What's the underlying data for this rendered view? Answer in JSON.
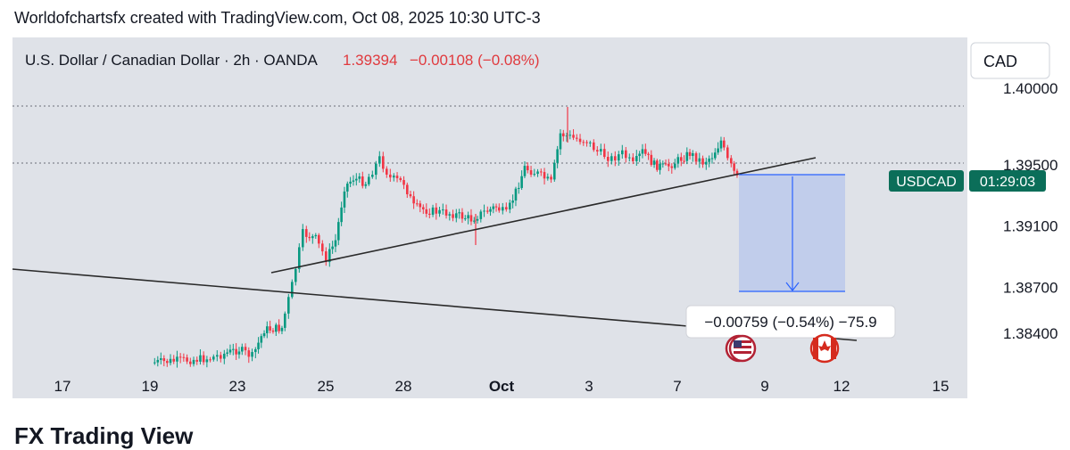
{
  "header": {
    "text": "Worldofchartsfx created with TradingView.com, Oct 08, 2025 10:30 UTC-3"
  },
  "bottom_title": "FX Trading View",
  "symbol": {
    "title": "U.S. Dollar / Canadian Dollar · 2h · OANDA",
    "price": "1.39394",
    "change": "−0.00108 (−0.08%)",
    "change_color": "#e03a3e"
  },
  "currency_button": "CAD",
  "ticker_badge": {
    "symbol": "USDCAD",
    "countdown": "01:29:03",
    "color": "#0b6e59"
  },
  "measure_label": "−0.00759 (−0.54%) −75.9",
  "colors": {
    "up": "#089981",
    "down": "#f23645",
    "panel": "#dfe2e8",
    "line": "#2a2a2a",
    "measure_fill": "#b7c6ec",
    "measure_line": "#2962ff"
  },
  "icons": [
    "us-flag-icon",
    "canada-flag-icon"
  ],
  "chart_data": {
    "type": "candlestick",
    "ylim": [
      1.382,
      1.4
    ]
  },
  "chart_axis": {
    "y_ticks": [
      {
        "label": "1.40000",
        "value": 1.4
      },
      {
        "label": "1.39500",
        "value": 1.395
      },
      {
        "label": "1.39100",
        "value": 1.391
      },
      {
        "label": "1.38700",
        "value": 1.387
      },
      {
        "label": "1.38400",
        "value": 1.384
      }
    ],
    "x_ticks": [
      {
        "label": "17",
        "bold": false
      },
      {
        "label": "19",
        "bold": false
      },
      {
        "label": "23",
        "bold": false
      },
      {
        "label": "25",
        "bold": false
      },
      {
        "label": "28",
        "bold": false
      },
      {
        "label": "Oct",
        "bold": true
      },
      {
        "label": "3",
        "bold": false
      },
      {
        "label": "7",
        "bold": false
      },
      {
        "label": "9",
        "bold": false
      },
      {
        "label": "12",
        "bold": false
      },
      {
        "label": "15",
        "bold": false
      }
    ]
  }
}
